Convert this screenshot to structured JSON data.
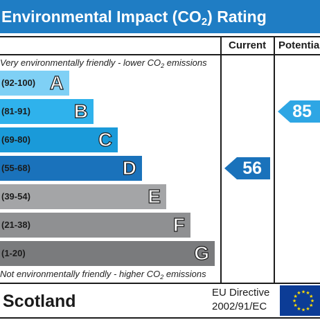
{
  "title": {
    "main": "Environmental Impact (CO",
    "sub": "2",
    "suffix": ") Rating"
  },
  "columns": {
    "current": "Current",
    "potential": "Potential"
  },
  "notes": {
    "top_main": "Very environmentally friendly - lower CO",
    "top_sub": "2",
    "top_suffix": " emissions",
    "bottom_main": "Not environmentally friendly - higher CO",
    "bottom_sub": "2",
    "bottom_suffix": " emissions"
  },
  "footer": {
    "region": "Scotland",
    "directive_line1": "EU Directive",
    "directive_line2": "2002/91/EC"
  },
  "colors": {
    "title_bar": "#1f7dc4",
    "current_arrow": "#1a72bb",
    "potential_arrow": "#2ea6e4",
    "eu_flag": "#0c3c96",
    "eu_stars": "#ffdd00"
  },
  "chart_data": {
    "type": "bar",
    "categories": [
      "A",
      "B",
      "C",
      "D",
      "E",
      "F",
      "G"
    ],
    "ranges": [
      "(92-100)",
      "(81-91)",
      "(69-80)",
      "(55-68)",
      "(39-54)",
      "(21-38)",
      "(1-20)"
    ],
    "bar_colors": [
      "#7fd0f5",
      "#2fb2ec",
      "#1a9ad9",
      "#1a72bb",
      "#a4a5a7",
      "#8f9092",
      "#7a7b7d"
    ],
    "current": {
      "value": 56,
      "band": "D"
    },
    "potential": {
      "value": 85,
      "band": "B"
    }
  }
}
